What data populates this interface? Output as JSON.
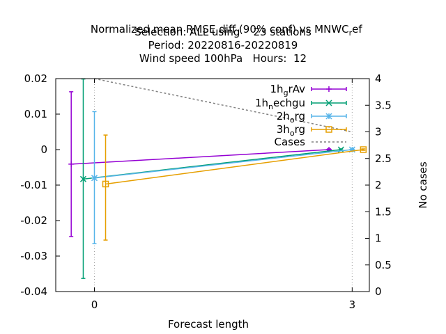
{
  "chart_data": {
    "type": "line",
    "title_lines": [
      "Normalized mean RMSE diff (90% conf) vs MNWC_ref",
      "Selection: ALL using    23 stations",
      "Period: 20220816-20220819",
      "Wind speed 100hPa   Hours:  12"
    ],
    "xlabel": "Forecast length",
    "ylabel": "",
    "y2label": "No cases",
    "xlim": [
      -0.45,
      3.2
    ],
    "ylim": [
      -0.04,
      0.02
    ],
    "y2lim": [
      0,
      4
    ],
    "x_ticks": [
      "0",
      "3"
    ],
    "y_ticks": [
      "0.02",
      "0.01",
      "0",
      "-0.01",
      "-0.02",
      "-0.03",
      "-0.04"
    ],
    "y2_ticks": [
      "4",
      "3.5",
      "3",
      "2.5",
      "2",
      "1.5",
      "1",
      "0.5",
      "0"
    ],
    "grid": true,
    "legend_position": "top-right",
    "series": [
      {
        "name": "1h_grAv",
        "label_main": "1h",
        "label_sub": "g",
        "label_rest": "rAv",
        "color": "#9400d3",
        "marker": "plus",
        "x": [
          -0.27,
          2.73
        ],
        "y": [
          -0.0041,
          0.0
        ],
        "err_low": [
          -0.0245,
          -0.0002
        ],
        "err_high": [
          0.0163,
          0.0002
        ]
      },
      {
        "name": "1h_nechgu",
        "label_main": "1h",
        "label_sub": "n",
        "label_rest": "echgu",
        "color": "#009e73",
        "marker": "x",
        "x": [
          -0.13,
          2.87
        ],
        "y": [
          -0.0083,
          0.0
        ],
        "err_low": [
          -0.0363,
          -0.0002
        ],
        "err_high": [
          0.0199,
          0.0002
        ]
      },
      {
        "name": "2h_org",
        "label_main": "2h",
        "label_sub": "o",
        "label_rest": "rg",
        "color": "#56b4e9",
        "marker": "star",
        "x": [
          0.0,
          3.0
        ],
        "y": [
          -0.008,
          0.0
        ],
        "err_low": [
          -0.0265,
          -0.0002
        ],
        "err_high": [
          0.0107,
          0.0002
        ]
      },
      {
        "name": "3h_org",
        "label_main": "3h",
        "label_sub": "o",
        "label_rest": "rg",
        "color": "#e69f00",
        "marker": "square",
        "x": [
          0.13,
          3.13
        ],
        "y": [
          -0.0097,
          0.0
        ],
        "err_low": [
          -0.0255,
          -0.0002
        ],
        "err_high": [
          0.0041,
          0.0002
        ]
      }
    ],
    "cases": {
      "name": "Cases",
      "color": "#808080",
      "axis": "y2",
      "x": [
        0.0,
        3.0
      ],
      "y": [
        4,
        3
      ]
    }
  }
}
